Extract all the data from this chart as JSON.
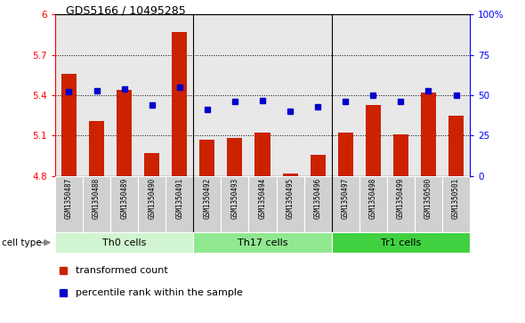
{
  "title": "GDS5166 / 10495285",
  "samples": [
    "GSM1350487",
    "GSM1350488",
    "GSM1350489",
    "GSM1350490",
    "GSM1350491",
    "GSM1350492",
    "GSM1350493",
    "GSM1350494",
    "GSM1350495",
    "GSM1350496",
    "GSM1350497",
    "GSM1350498",
    "GSM1350499",
    "GSM1350500",
    "GSM1350501"
  ],
  "transformed_count": [
    5.56,
    5.21,
    5.44,
    4.97,
    5.87,
    5.07,
    5.08,
    5.12,
    4.82,
    4.96,
    5.12,
    5.33,
    5.11,
    5.42,
    5.25
  ],
  "percentile_rank": [
    52,
    53,
    54,
    44,
    55,
    41,
    46,
    47,
    40,
    43,
    46,
    50,
    46,
    53,
    50
  ],
  "cell_types": [
    {
      "label": "Th0 cells",
      "start": 0,
      "end": 4,
      "color": "#d0f5d0"
    },
    {
      "label": "Th17 cells",
      "start": 5,
      "end": 9,
      "color": "#90e890"
    },
    {
      "label": "Tr1 cells",
      "start": 10,
      "end": 14,
      "color": "#40d040"
    }
  ],
  "ylim_left": [
    4.8,
    6.0
  ],
  "ylim_right": [
    0,
    100
  ],
  "yticks_left": [
    4.8,
    5.1,
    5.4,
    5.7,
    6.0
  ],
  "yticks_right": [
    0,
    25,
    50,
    75,
    100
  ],
  "ytick_labels_left": [
    "4.8",
    "5.1",
    "5.4",
    "5.7",
    "6"
  ],
  "ytick_labels_right": [
    "0",
    "25",
    "50",
    "75",
    "100%"
  ],
  "bar_color": "#cc2200",
  "dot_color": "#0000cc",
  "plot_bg_color": "#e8e8e8",
  "xtick_bg_color": "#d0d0d0",
  "legend_bar_label": "transformed count",
  "legend_dot_label": "percentile rank within the sample",
  "cell_type_label": "cell type"
}
